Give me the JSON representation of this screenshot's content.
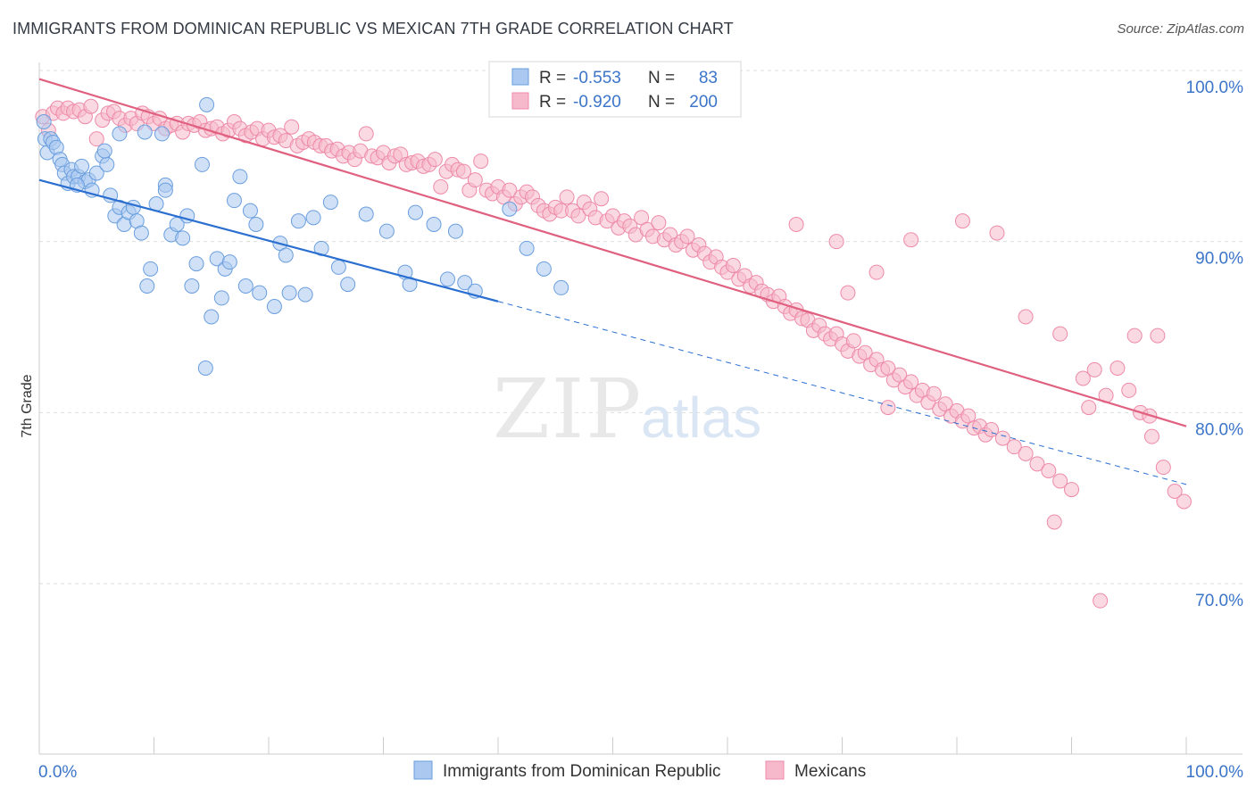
{
  "header": {
    "title": "IMMIGRANTS FROM DOMINICAN REPUBLIC VS MEXICAN 7TH GRADE CORRELATION CHART",
    "source": "Source: ZipAtlas.com"
  },
  "watermark": {
    "zip": "ZIP",
    "atlas": "atlas"
  },
  "colors": {
    "blue_fill": "#aac8f0",
    "blue_stroke": "#6a9ede",
    "blue_line": "#2a6fd0",
    "pink_fill": "#f6b9cb",
    "pink_stroke": "#ee8aa8",
    "pink_line": "#e0607f",
    "tick_label": "#3b74c9",
    "grid": "#dddddd"
  },
  "chart_data": {
    "type": "scatter",
    "title": "IMMIGRANTS FROM DOMINICAN REPUBLIC VS MEXICAN 7TH GRADE CORRELATION CHART",
    "xlabel": "",
    "ylabel": "7th Grade",
    "xlim": [
      0,
      100
    ],
    "ylim": [
      60,
      102
    ],
    "x_tick_labels": [
      "0.0%",
      "100.0%"
    ],
    "y_ticks": [
      70,
      80,
      90,
      100
    ],
    "y_tick_labels": [
      "70.0%",
      "80.0%",
      "90.0%",
      "100.0%"
    ],
    "grid": true,
    "legend_position": "top-center",
    "legend": [
      {
        "r_label": "R =",
        "r_value": "-0.553",
        "n_label": "N =",
        "n_value": "83"
      },
      {
        "r_label": "R =",
        "r_value": "-0.920",
        "n_label": "N =",
        "n_value": "200"
      }
    ],
    "series": [
      {
        "name": "Immigrants from Dominican Republic",
        "color": "#aac8f0",
        "trend": {
          "x0": 0,
          "y0": 93.6,
          "x1": 40,
          "y1": 86.5,
          "dashed_to_x": 100,
          "dashed_to_y": 75.8
        },
        "points": [
          [
            0.4,
            97.0
          ],
          [
            0.5,
            96.0
          ],
          [
            0.7,
            95.2
          ],
          [
            1.0,
            96.0
          ],
          [
            1.2,
            95.8
          ],
          [
            1.5,
            95.5
          ],
          [
            1.8,
            94.8
          ],
          [
            2.0,
            94.5
          ],
          [
            2.2,
            94.0
          ],
          [
            2.5,
            93.4
          ],
          [
            2.8,
            94.2
          ],
          [
            3.0,
            93.8
          ],
          [
            3.4,
            93.8
          ],
          [
            3.7,
            94.4
          ],
          [
            4.0,
            93.5
          ],
          [
            4.3,
            93.6
          ],
          [
            4.6,
            93.0
          ],
          [
            5.0,
            94.0
          ],
          [
            5.5,
            95.0
          ],
          [
            5.9,
            94.5
          ],
          [
            6.2,
            92.7
          ],
          [
            6.6,
            91.5
          ],
          [
            7.0,
            92.0
          ],
          [
            7.4,
            91.0
          ],
          [
            7.8,
            91.7
          ],
          [
            8.2,
            92.0
          ],
          [
            8.5,
            91.2
          ],
          [
            8.9,
            90.5
          ],
          [
            9.4,
            87.4
          ],
          [
            9.7,
            88.4
          ],
          [
            10.2,
            92.2
          ],
          [
            11.0,
            93.3
          ],
          [
            11.5,
            90.4
          ],
          [
            12.0,
            91.0
          ],
          [
            12.5,
            90.2
          ],
          [
            12.9,
            91.5
          ],
          [
            13.3,
            87.4
          ],
          [
            13.7,
            88.7
          ],
          [
            14.2,
            94.5
          ],
          [
            14.6,
            98.0
          ],
          [
            15.0,
            85.6
          ],
          [
            15.5,
            89.0
          ],
          [
            15.9,
            86.7
          ],
          [
            16.2,
            88.4
          ],
          [
            16.6,
            88.8
          ],
          [
            17.0,
            92.4
          ],
          [
            17.5,
            93.8
          ],
          [
            18.0,
            87.4
          ],
          [
            18.4,
            91.8
          ],
          [
            18.9,
            91.0
          ],
          [
            19.2,
            87.0
          ],
          [
            20.5,
            86.2
          ],
          [
            21.0,
            89.9
          ],
          [
            21.5,
            89.2
          ],
          [
            21.8,
            87.0
          ],
          [
            22.6,
            91.2
          ],
          [
            23.2,
            86.9
          ],
          [
            23.9,
            91.4
          ],
          [
            24.6,
            89.6
          ],
          [
            25.4,
            92.3
          ],
          [
            26.1,
            88.5
          ],
          [
            26.9,
            87.5
          ],
          [
            28.5,
            91.6
          ],
          [
            30.3,
            90.6
          ],
          [
            31.9,
            88.2
          ],
          [
            32.3,
            87.5
          ],
          [
            32.8,
            91.7
          ],
          [
            34.4,
            91.0
          ],
          [
            35.6,
            87.8
          ],
          [
            36.3,
            90.6
          ],
          [
            37.1,
            87.6
          ],
          [
            38.0,
            87.1
          ],
          [
            41.0,
            91.9
          ],
          [
            42.5,
            89.6
          ],
          [
            44.0,
            88.4
          ],
          [
            45.5,
            87.3
          ],
          [
            14.5,
            82.6
          ],
          [
            5.7,
            95.3
          ],
          [
            9.2,
            96.4
          ],
          [
            7.0,
            96.3
          ],
          [
            3.3,
            93.3
          ],
          [
            11.0,
            93.0
          ],
          [
            10.7,
            96.3
          ]
        ]
      },
      {
        "name": "Mexicans",
        "color": "#f6b9cb",
        "trend": {
          "x0": 0,
          "y0": 99.5,
          "x1": 100,
          "y1": 79.2
        },
        "points": [
          [
            0.3,
            97.3
          ],
          [
            0.8,
            96.5
          ],
          [
            1.2,
            97.5
          ],
          [
            1.6,
            97.8
          ],
          [
            2.1,
            97.5
          ],
          [
            2.5,
            97.8
          ],
          [
            3.0,
            97.6
          ],
          [
            3.5,
            97.7
          ],
          [
            4.0,
            97.3
          ],
          [
            4.5,
            97.9
          ],
          [
            5.0,
            96.0
          ],
          [
            5.5,
            97.1
          ],
          [
            6.0,
            97.5
          ],
          [
            6.5,
            97.6
          ],
          [
            7.0,
            97.2
          ],
          [
            7.5,
            96.8
          ],
          [
            8.0,
            97.2
          ],
          [
            8.5,
            96.9
          ],
          [
            9.0,
            97.5
          ],
          [
            9.5,
            97.3
          ],
          [
            10.0,
            96.9
          ],
          [
            10.5,
            97.2
          ],
          [
            11.0,
            96.6
          ],
          [
            11.5,
            96.8
          ],
          [
            12.0,
            96.9
          ],
          [
            12.5,
            96.4
          ],
          [
            13.0,
            96.9
          ],
          [
            13.5,
            96.8
          ],
          [
            14.0,
            97.0
          ],
          [
            14.5,
            96.5
          ],
          [
            15.0,
            96.6
          ],
          [
            15.5,
            96.7
          ],
          [
            16.0,
            96.3
          ],
          [
            16.5,
            96.5
          ],
          [
            17.0,
            97.0
          ],
          [
            17.5,
            96.6
          ],
          [
            18.0,
            96.2
          ],
          [
            18.5,
            96.4
          ],
          [
            19.0,
            96.6
          ],
          [
            19.5,
            96.0
          ],
          [
            20.0,
            96.5
          ],
          [
            20.5,
            96.1
          ],
          [
            21.0,
            96.2
          ],
          [
            21.5,
            95.9
          ],
          [
            22.0,
            96.7
          ],
          [
            22.5,
            95.6
          ],
          [
            23.0,
            95.8
          ],
          [
            23.5,
            96.0
          ],
          [
            24.0,
            95.8
          ],
          [
            24.5,
            95.6
          ],
          [
            25.0,
            95.6
          ],
          [
            25.5,
            95.3
          ],
          [
            26.0,
            95.4
          ],
          [
            26.5,
            95.0
          ],
          [
            27.0,
            95.2
          ],
          [
            27.5,
            94.8
          ],
          [
            28.0,
            95.3
          ],
          [
            28.5,
            96.3
          ],
          [
            29.0,
            95.0
          ],
          [
            29.5,
            94.9
          ],
          [
            30.0,
            95.2
          ],
          [
            30.5,
            94.6
          ],
          [
            31.0,
            95.0
          ],
          [
            31.5,
            95.1
          ],
          [
            32.0,
            94.5
          ],
          [
            32.5,
            94.6
          ],
          [
            33.0,
            94.7
          ],
          [
            33.5,
            94.4
          ],
          [
            34.0,
            94.5
          ],
          [
            34.5,
            94.8
          ],
          [
            35.0,
            93.2
          ],
          [
            35.5,
            94.1
          ],
          [
            36.0,
            94.5
          ],
          [
            36.5,
            94.2
          ],
          [
            37.0,
            94.1
          ],
          [
            37.5,
            93.0
          ],
          [
            38.0,
            93.6
          ],
          [
            38.5,
            94.7
          ],
          [
            39.0,
            93.0
          ],
          [
            39.5,
            92.8
          ],
          [
            40.0,
            93.2
          ],
          [
            40.5,
            92.6
          ],
          [
            41.0,
            93.0
          ],
          [
            41.5,
            92.2
          ],
          [
            42.0,
            92.6
          ],
          [
            42.5,
            92.9
          ],
          [
            43.0,
            92.6
          ],
          [
            43.5,
            92.1
          ],
          [
            44.0,
            91.8
          ],
          [
            44.5,
            91.6
          ],
          [
            45.0,
            92.0
          ],
          [
            45.5,
            91.8
          ],
          [
            46.0,
            92.6
          ],
          [
            46.5,
            91.8
          ],
          [
            47.0,
            91.5
          ],
          [
            47.5,
            92.3
          ],
          [
            48.0,
            91.9
          ],
          [
            48.5,
            91.4
          ],
          [
            49.0,
            92.5
          ],
          [
            49.5,
            91.2
          ],
          [
            50.0,
            91.5
          ],
          [
            50.5,
            90.8
          ],
          [
            51.0,
            91.2
          ],
          [
            51.5,
            90.9
          ],
          [
            52.0,
            90.4
          ],
          [
            52.5,
            91.4
          ],
          [
            53.0,
            90.7
          ],
          [
            53.5,
            90.3
          ],
          [
            54.0,
            91.1
          ],
          [
            54.5,
            90.1
          ],
          [
            55.0,
            90.4
          ],
          [
            55.5,
            89.8
          ],
          [
            56.0,
            90.0
          ],
          [
            56.5,
            90.3
          ],
          [
            57.0,
            89.5
          ],
          [
            57.5,
            89.8
          ],
          [
            58.0,
            89.3
          ],
          [
            58.5,
            88.8
          ],
          [
            59.0,
            89.1
          ],
          [
            59.5,
            88.5
          ],
          [
            60.0,
            88.2
          ],
          [
            60.5,
            88.6
          ],
          [
            61.0,
            87.8
          ],
          [
            61.5,
            88.0
          ],
          [
            62.0,
            87.4
          ],
          [
            62.5,
            87.6
          ],
          [
            63.0,
            87.1
          ],
          [
            63.5,
            86.9
          ],
          [
            64.0,
            86.5
          ],
          [
            64.5,
            86.8
          ],
          [
            65.0,
            86.2
          ],
          [
            65.5,
            85.8
          ],
          [
            66.0,
            86.0
          ],
          [
            66.5,
            85.5
          ],
          [
            67.0,
            85.4
          ],
          [
            67.5,
            84.8
          ],
          [
            68.0,
            85.1
          ],
          [
            68.5,
            84.6
          ],
          [
            69.0,
            84.3
          ],
          [
            69.5,
            84.6
          ],
          [
            70.0,
            84.0
          ],
          [
            70.5,
            83.6
          ],
          [
            71.0,
            84.2
          ],
          [
            71.5,
            83.3
          ],
          [
            72.0,
            83.5
          ],
          [
            72.5,
            82.8
          ],
          [
            73.0,
            83.1
          ],
          [
            73.5,
            82.5
          ],
          [
            74.0,
            82.6
          ],
          [
            74.5,
            81.9
          ],
          [
            75.0,
            82.2
          ],
          [
            75.5,
            81.5
          ],
          [
            76.0,
            81.8
          ],
          [
            76.5,
            81.0
          ],
          [
            77.0,
            81.3
          ],
          [
            77.5,
            80.6
          ],
          [
            78.0,
            81.1
          ],
          [
            78.5,
            80.2
          ],
          [
            79.0,
            80.5
          ],
          [
            79.5,
            79.8
          ],
          [
            80.0,
            80.1
          ],
          [
            80.5,
            79.5
          ],
          [
            81.0,
            79.8
          ],
          [
            81.5,
            79.1
          ],
          [
            82.0,
            79.2
          ],
          [
            82.5,
            78.7
          ],
          [
            83.0,
            79.0
          ],
          [
            84.0,
            78.5
          ],
          [
            85.0,
            78.0
          ],
          [
            86.0,
            77.6
          ],
          [
            87.0,
            77.0
          ],
          [
            88.0,
            76.6
          ],
          [
            89.0,
            76.0
          ],
          [
            90.0,
            75.5
          ],
          [
            91.0,
            82.0
          ],
          [
            92.0,
            82.5
          ],
          [
            93.0,
            81.0
          ],
          [
            94.0,
            82.6
          ],
          [
            95.0,
            81.3
          ],
          [
            96.0,
            80.0
          ],
          [
            97.0,
            78.6
          ],
          [
            98.0,
            76.8
          ],
          [
            99.0,
            75.4
          ],
          [
            99.8,
            74.8
          ],
          [
            96.8,
            79.8
          ],
          [
            95.5,
            84.5
          ],
          [
            91.5,
            80.3
          ],
          [
            88.5,
            73.6
          ],
          [
            92.5,
            69.0
          ],
          [
            97.5,
            84.5
          ],
          [
            66.0,
            91.0
          ],
          [
            69.5,
            90.0
          ],
          [
            73.0,
            88.2
          ],
          [
            76.0,
            90.1
          ],
          [
            80.5,
            91.2
          ],
          [
            83.5,
            90.5
          ],
          [
            86.0,
            85.6
          ],
          [
            89.0,
            84.6
          ],
          [
            70.5,
            87.0
          ],
          [
            74.0,
            80.3
          ]
        ]
      }
    ]
  },
  "legend_bottom": [
    {
      "label": "Immigrants from Dominican Republic"
    },
    {
      "label": "Mexicans"
    }
  ]
}
